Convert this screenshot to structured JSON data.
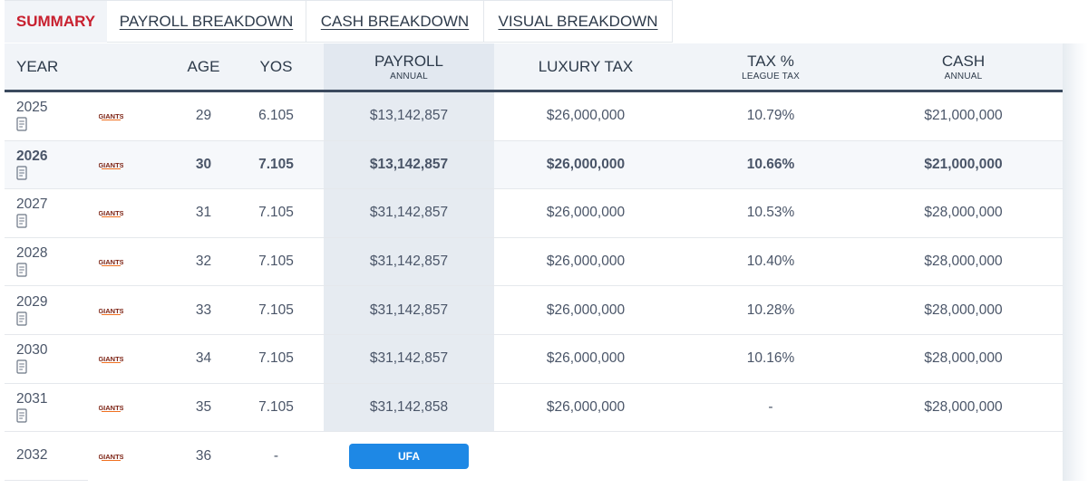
{
  "tabs": [
    {
      "label": "SUMMARY",
      "active": true
    },
    {
      "label": "PAYROLL BREAKDOWN",
      "active": false
    },
    {
      "label": "CASH BREAKDOWN",
      "active": false
    },
    {
      "label": "VISUAL BREAKDOWN",
      "active": false
    }
  ],
  "columns": {
    "year": "YEAR",
    "age": "AGE",
    "yos": "YOS",
    "payroll": "PAYROLL",
    "payroll_sub": "ANNUAL",
    "luxury_tax": "LUXURY TAX",
    "tax_pct": "TAX %",
    "tax_pct_sub": "LEAGUE TAX",
    "cash": "CASH",
    "cash_sub": "ANNUAL"
  },
  "team_logo_text": "GIANTS",
  "colors": {
    "active_tab": "#c8202f",
    "header_rule": "#3b4a5e",
    "payroll_column": "#e6ebf1",
    "ufa_button": "#1e88e5"
  },
  "rows": [
    {
      "year": "2025",
      "age": "29",
      "yos": "6.105",
      "payroll": "$13,142,857",
      "luxury_tax": "$26,000,000",
      "tax_pct": "10.79%",
      "cash": "$21,000,000"
    },
    {
      "year": "2026",
      "age": "30",
      "yos": "7.105",
      "payroll": "$13,142,857",
      "luxury_tax": "$26,000,000",
      "tax_pct": "10.66%",
      "cash": "$21,000,000"
    },
    {
      "year": "2027",
      "age": "31",
      "yos": "7.105",
      "payroll": "$31,142,857",
      "luxury_tax": "$26,000,000",
      "tax_pct": "10.53%",
      "cash": "$28,000,000"
    },
    {
      "year": "2028",
      "age": "32",
      "yos": "7.105",
      "payroll": "$31,142,857",
      "luxury_tax": "$26,000,000",
      "tax_pct": "10.40%",
      "cash": "$28,000,000"
    },
    {
      "year": "2029",
      "age": "33",
      "yos": "7.105",
      "payroll": "$31,142,857",
      "luxury_tax": "$26,000,000",
      "tax_pct": "10.28%",
      "cash": "$28,000,000"
    },
    {
      "year": "2030",
      "age": "34",
      "yos": "7.105",
      "payroll": "$31,142,857",
      "luxury_tax": "$26,000,000",
      "tax_pct": "10.16%",
      "cash": "$28,000,000"
    },
    {
      "year": "2031",
      "age": "35",
      "yos": "7.105",
      "payroll": "$31,142,858",
      "luxury_tax": "$26,000,000",
      "tax_pct": "-",
      "cash": "$28,000,000"
    }
  ],
  "final_row": {
    "year": "2032",
    "age": "36",
    "yos": "-",
    "status_button": "UFA"
  }
}
